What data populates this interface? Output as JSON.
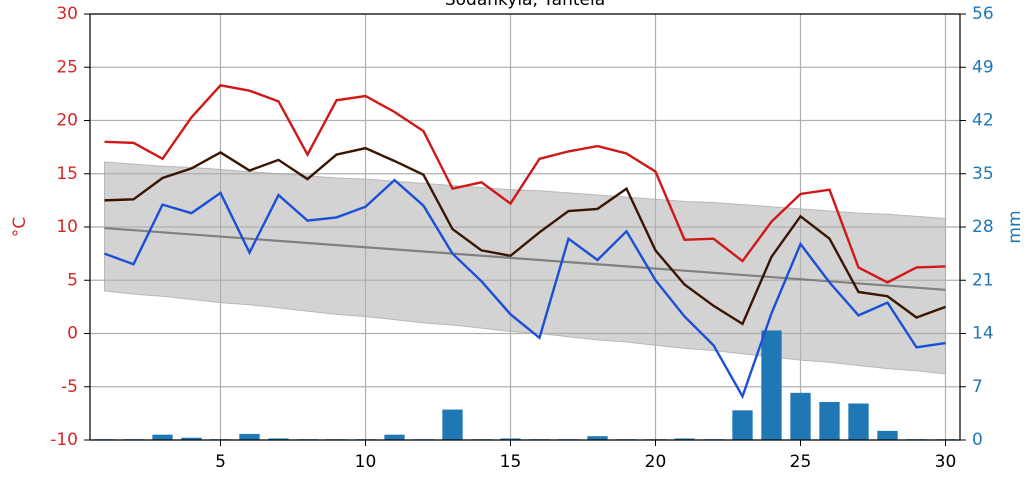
{
  "chart_data": {
    "type": "line",
    "title": "Sodankylä, Tähtelä",
    "ylabel": "°C",
    "y2label": "mm",
    "y_color": "#d62728",
    "y2_color": "#1f77b4",
    "xlim": [
      0.5,
      30.5
    ],
    "xticks": [
      5,
      10,
      15,
      20,
      25,
      30
    ],
    "ylim": [
      -10,
      30
    ],
    "yticks": [
      -10,
      -5,
      0,
      5,
      10,
      15,
      20,
      25,
      30
    ],
    "y2lim": [
      0,
      56
    ],
    "y2ticks": [
      0,
      7,
      14,
      21,
      28,
      35,
      42,
      49,
      56
    ],
    "grid": true,
    "x": [
      1,
      2,
      3,
      4,
      5,
      6,
      7,
      8,
      9,
      10,
      11,
      12,
      13,
      14,
      15,
      16,
      17,
      18,
      19,
      20,
      21,
      22,
      23,
      24,
      25,
      26,
      27,
      28,
      29,
      30
    ],
    "band": {
      "color": "#d3d3d3",
      "upper": [
        16.1,
        15.9,
        15.7,
        15.6,
        15.4,
        15.2,
        15.0,
        14.8,
        14.6,
        14.5,
        14.3,
        14.1,
        13.9,
        13.7,
        13.5,
        13.4,
        13.2,
        13.0,
        12.8,
        12.6,
        12.4,
        12.3,
        12.1,
        11.9,
        11.7,
        11.5,
        11.3,
        11.2,
        11.0,
        10.8
      ],
      "lower": [
        4.0,
        3.7,
        3.5,
        3.2,
        2.9,
        2.7,
        2.4,
        2.1,
        1.8,
        1.6,
        1.3,
        1.0,
        0.8,
        0.5,
        0.2,
        0.0,
        -0.3,
        -0.6,
        -0.8,
        -1.1,
        -1.4,
        -1.6,
        -1.9,
        -2.2,
        -2.5,
        -2.7,
        -3.0,
        -3.3,
        -3.5,
        -3.8
      ]
    },
    "bars": {
      "color": "#1f77b4",
      "axis": "y2",
      "values": [
        0.1,
        0.1,
        0.7,
        0.3,
        0.1,
        0.8,
        0.2,
        0.1,
        0.1,
        0.1,
        0.7,
        0.1,
        4.0,
        0.1,
        0.2,
        0.1,
        0.1,
        0.5,
        0.1,
        0.1,
        0.2,
        0.1,
        3.9,
        14.4,
        6.2,
        5.0,
        4.8,
        1.2,
        0.1,
        0.1
      ]
    },
    "series": [
      {
        "color": "#808080",
        "values": [
          9.9,
          9.7,
          9.5,
          9.3,
          9.1,
          8.9,
          8.7,
          8.5,
          8.3,
          8.1,
          7.9,
          7.7,
          7.5,
          7.3,
          7.1,
          6.9,
          6.7,
          6.5,
          6.3,
          6.1,
          5.9,
          5.7,
          5.5,
          5.3,
          5.1,
          4.9,
          4.7,
          4.5,
          4.3,
          4.1
        ]
      },
      {
        "color": "#d01818",
        "values": [
          18.0,
          17.9,
          16.4,
          20.3,
          23.3,
          22.8,
          21.8,
          16.8,
          21.9,
          22.3,
          20.8,
          19.0,
          13.6,
          14.2,
          12.2,
          16.4,
          17.1,
          17.6,
          16.9,
          15.2,
          8.8,
          8.9,
          6.8,
          10.5,
          13.1,
          13.5,
          6.2,
          4.8,
          6.2,
          6.3
        ]
      },
      {
        "color": "#3a1500",
        "values": [
          12.5,
          12.6,
          14.6,
          15.5,
          17.0,
          15.3,
          16.3,
          14.5,
          16.8,
          17.4,
          16.2,
          14.9,
          9.8,
          7.8,
          7.3,
          9.5,
          11.5,
          11.7,
          13.6,
          7.8,
          4.6,
          2.6,
          0.9,
          7.2,
          11.0,
          8.9,
          3.9,
          3.5,
          1.5,
          2.5
        ]
      },
      {
        "color": "#1a4fd6",
        "values": [
          7.5,
          6.5,
          12.1,
          11.3,
          13.2,
          7.6,
          13.0,
          10.6,
          10.9,
          11.9,
          14.4,
          12.0,
          7.5,
          4.9,
          1.8,
          -0.4,
          8.9,
          6.9,
          9.6,
          5.0,
          1.6,
          -1.1,
          -5.9,
          1.9,
          8.4,
          4.8,
          1.7,
          2.9,
          -1.3,
          -0.9
        ]
      }
    ]
  }
}
